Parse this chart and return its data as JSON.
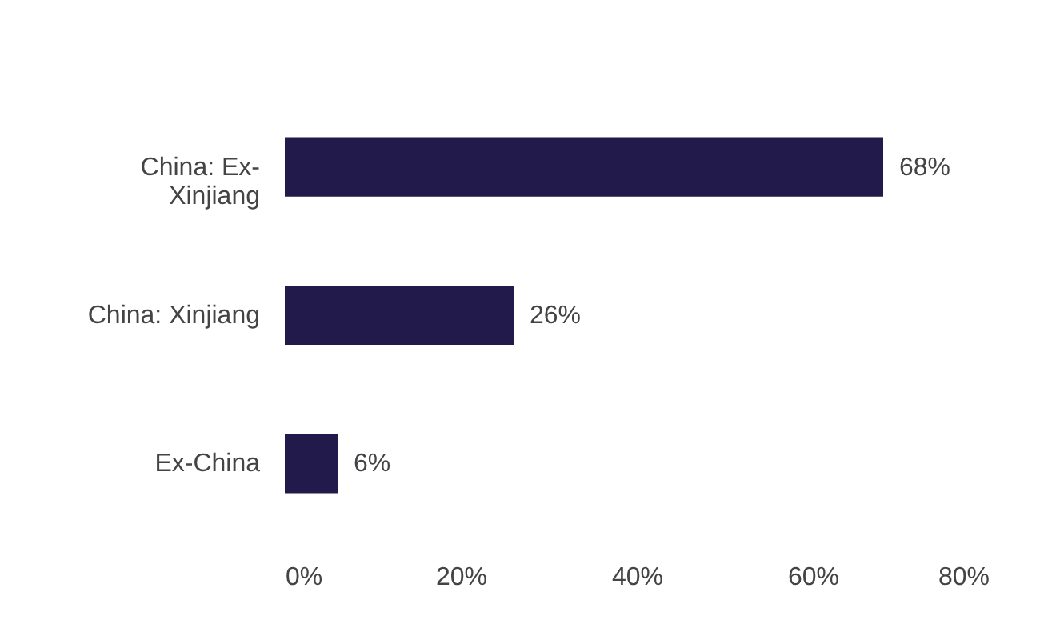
{
  "chart_data": {
    "type": "bar",
    "orientation": "horizontal",
    "categories": [
      "China: Ex-Xinjiang",
      "China: Xinjiang",
      "Ex-China"
    ],
    "values": [
      68,
      26,
      6
    ],
    "value_labels": [
      "68%",
      "26%",
      "6%"
    ],
    "color": "#221a4a",
    "xlim": [
      0,
      80
    ],
    "xticks": [
      {
        "value": 0,
        "label": "0%"
      },
      {
        "value": 20,
        "label": "20%"
      },
      {
        "value": 40,
        "label": "40%"
      },
      {
        "value": 60,
        "label": "60%"
      },
      {
        "value": 80,
        "label": "80%"
      }
    ],
    "tick_labels": true
  }
}
